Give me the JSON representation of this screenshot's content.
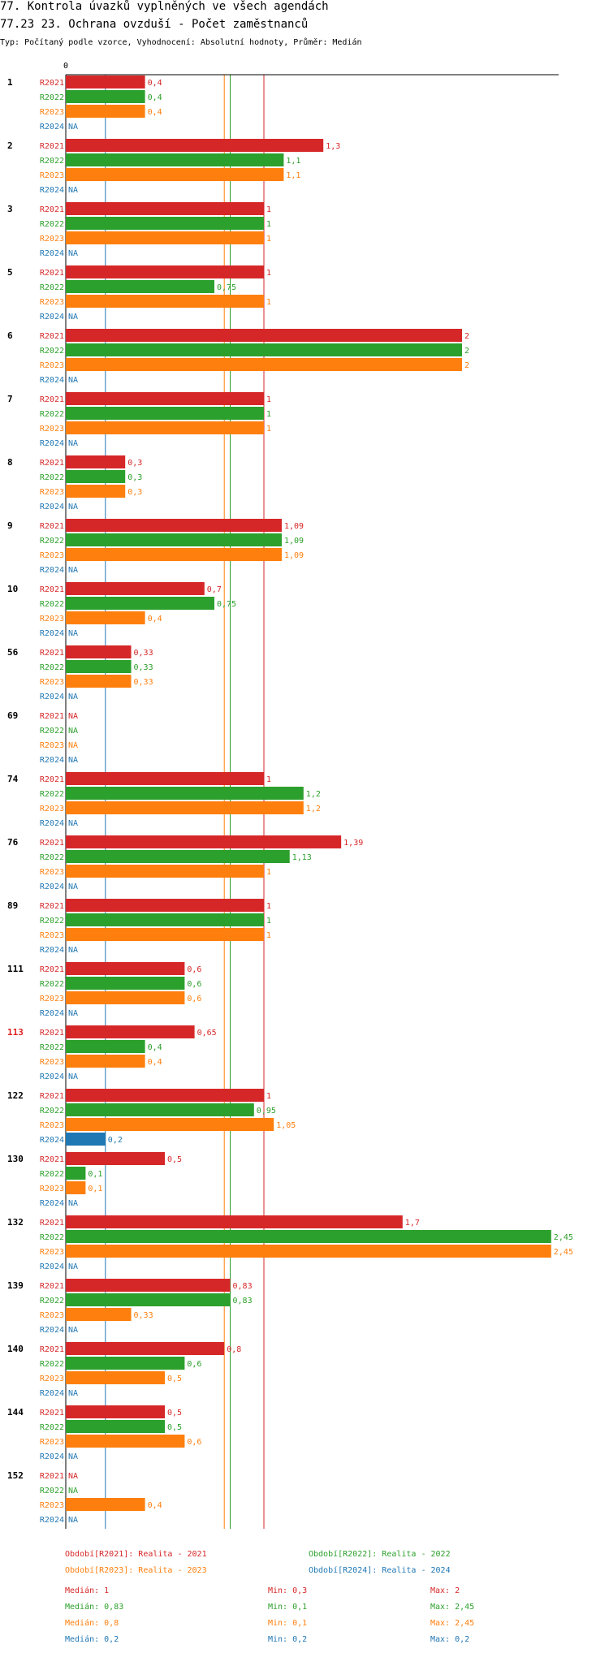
{
  "title_line1": "77. Kontrola úvazků vyplněných ve všech agendách",
  "title_line2": "77.23 23. Ochrana ovzduší - Počet zaměstnanců",
  "subtitle": "Typ: Počítaný podle vzorce, Vyhodnocení: Absolutní hodnoty, Průměr: Medián",
  "colors": {
    "R2021": "#d62728",
    "R2022": "#2ca02c",
    "R2023": "#ff7f0e",
    "R2024": "#1f77b4"
  },
  "chart_data": {
    "type": "bar",
    "orientation": "horizontal",
    "axis_zero_label": "0",
    "series_names": [
      "R2021",
      "R2022",
      "R2023",
      "R2024"
    ],
    "na_label": "NA",
    "xlim": [
      0,
      2.45
    ],
    "groups": [
      {
        "label": "1",
        "highlight": false,
        "values": [
          0.4,
          0.4,
          0.4,
          null
        ],
        "labels": [
          "0,4",
          "0,4",
          "0,4",
          "NA"
        ]
      },
      {
        "label": "2",
        "highlight": false,
        "values": [
          1.3,
          1.1,
          1.1,
          null
        ],
        "labels": [
          "1,3",
          "1,1",
          "1,1",
          "NA"
        ]
      },
      {
        "label": "3",
        "highlight": false,
        "values": [
          1,
          1,
          1,
          null
        ],
        "labels": [
          "1",
          "1",
          "1",
          "NA"
        ]
      },
      {
        "label": "5",
        "highlight": false,
        "values": [
          1,
          0.75,
          1,
          null
        ],
        "labels": [
          "1",
          "0,75",
          "1",
          "NA"
        ]
      },
      {
        "label": "6",
        "highlight": false,
        "values": [
          2,
          2,
          2,
          null
        ],
        "labels": [
          "2",
          "2",
          "2",
          "NA"
        ]
      },
      {
        "label": "7",
        "highlight": false,
        "values": [
          1,
          1,
          1,
          null
        ],
        "labels": [
          "1",
          "1",
          "1",
          "NA"
        ]
      },
      {
        "label": "8",
        "highlight": false,
        "values": [
          0.3,
          0.3,
          0.3,
          null
        ],
        "labels": [
          "0,3",
          "0,3",
          "0,3",
          "NA"
        ]
      },
      {
        "label": "9",
        "highlight": false,
        "values": [
          1.09,
          1.09,
          1.09,
          null
        ],
        "labels": [
          "1,09",
          "1,09",
          "1,09",
          "NA"
        ]
      },
      {
        "label": "10",
        "highlight": false,
        "values": [
          0.7,
          0.75,
          0.4,
          null
        ],
        "labels": [
          "0,7",
          "0,75",
          "0,4",
          "NA"
        ]
      },
      {
        "label": "56",
        "highlight": false,
        "values": [
          0.33,
          0.33,
          0.33,
          null
        ],
        "labels": [
          "0,33",
          "0,33",
          "0,33",
          "NA"
        ]
      },
      {
        "label": "69",
        "highlight": false,
        "values": [
          null,
          null,
          null,
          null
        ],
        "labels": [
          "NA",
          "NA",
          "NA",
          "NA"
        ]
      },
      {
        "label": "74",
        "highlight": false,
        "values": [
          1,
          1.2,
          1.2,
          null
        ],
        "labels": [
          "1",
          "1,2",
          "1,2",
          "NA"
        ]
      },
      {
        "label": "76",
        "highlight": false,
        "values": [
          1.39,
          1.13,
          1,
          null
        ],
        "labels": [
          "1,39",
          "1,13",
          "1",
          "NA"
        ]
      },
      {
        "label": "89",
        "highlight": false,
        "values": [
          1,
          1,
          1,
          null
        ],
        "labels": [
          "1",
          "1",
          "1",
          "NA"
        ]
      },
      {
        "label": "111",
        "highlight": false,
        "values": [
          0.6,
          0.6,
          0.6,
          null
        ],
        "labels": [
          "0,6",
          "0,6",
          "0,6",
          "NA"
        ]
      },
      {
        "label": "113",
        "highlight": true,
        "values": [
          0.65,
          0.4,
          0.4,
          null
        ],
        "labels": [
          "0,65",
          "0,4",
          "0,4",
          "NA"
        ]
      },
      {
        "label": "122",
        "highlight": false,
        "values": [
          1,
          0.95,
          1.05,
          0.2
        ],
        "labels": [
          "1",
          "0,95",
          "1,05",
          "0,2"
        ]
      },
      {
        "label": "130",
        "highlight": false,
        "values": [
          0.5,
          0.1,
          0.1,
          null
        ],
        "labels": [
          "0,5",
          "0,1",
          "0,1",
          "NA"
        ]
      },
      {
        "label": "132",
        "highlight": false,
        "values": [
          1.7,
          2.45,
          2.45,
          null
        ],
        "labels": [
          "1,7",
          "2,45",
          "2,45",
          "NA"
        ]
      },
      {
        "label": "139",
        "highlight": false,
        "values": [
          0.83,
          0.83,
          0.33,
          null
        ],
        "labels": [
          "0,83",
          "0,83",
          "0,33",
          "NA"
        ]
      },
      {
        "label": "140",
        "highlight": false,
        "values": [
          0.8,
          0.6,
          0.5,
          null
        ],
        "labels": [
          "0,8",
          "0,6",
          "0,5",
          "NA"
        ]
      },
      {
        "label": "144",
        "highlight": false,
        "values": [
          0.5,
          0.5,
          0.6,
          null
        ],
        "labels": [
          "0,5",
          "0,5",
          "0,6",
          "NA"
        ]
      },
      {
        "label": "152",
        "highlight": false,
        "values": [
          null,
          null,
          0.4,
          null
        ],
        "labels": [
          "NA",
          "NA",
          "0,4",
          "NA"
        ]
      }
    ],
    "median_lines": [
      {
        "series": "R2021",
        "value": 1
      },
      {
        "series": "R2022",
        "value": 0.83
      },
      {
        "series": "R2023",
        "value": 0.8
      },
      {
        "series": "R2024",
        "value": 0.2
      }
    ]
  },
  "legend": [
    {
      "series": "R2021",
      "text": "Období[R2021]: Realita - 2021"
    },
    {
      "series": "R2022",
      "text": "Období[R2022]: Realita - 2022"
    },
    {
      "series": "R2023",
      "text": "Období[R2023]: Realita - 2023"
    },
    {
      "series": "R2024",
      "text": "Období[R2024]: Realita - 2024"
    }
  ],
  "stats": [
    {
      "series": "R2021",
      "median": "Medián: 1",
      "min": "Min: 0,3",
      "max": "Max: 2"
    },
    {
      "series": "R2022",
      "median": "Medián: 0,83",
      "min": "Min: 0,1",
      "max": "Max: 2,45"
    },
    {
      "series": "R2023",
      "median": "Medián: 0,8",
      "min": "Min: 0,1",
      "max": "Max: 2,45"
    },
    {
      "series": "R2024",
      "median": "Medián: 0,2",
      "min": "Min: 0,2",
      "max": "Max: 0,2"
    }
  ]
}
